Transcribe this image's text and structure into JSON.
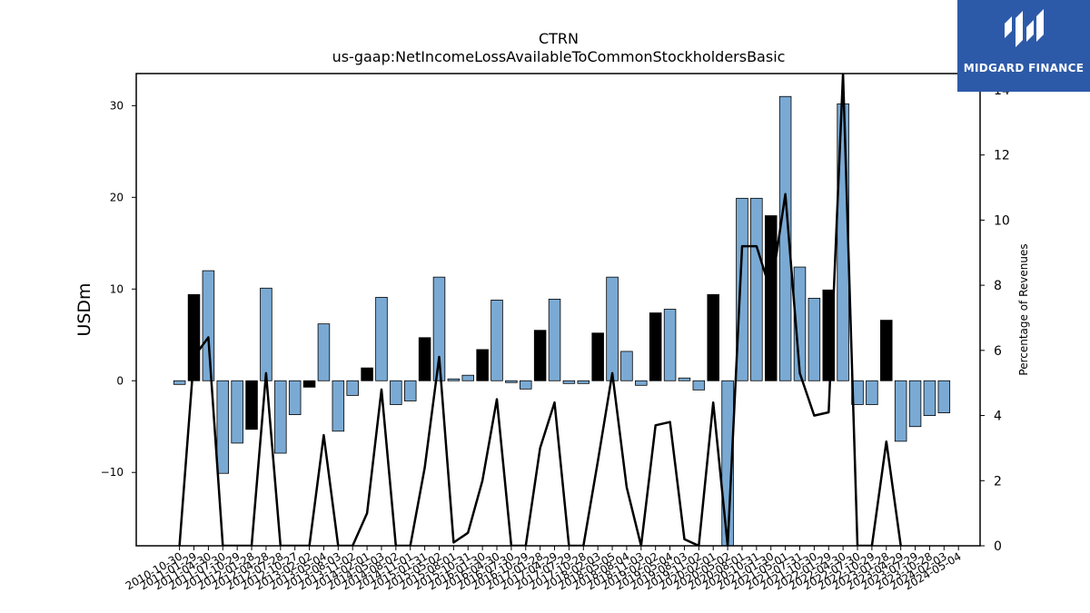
{
  "chart_data": {
    "type": "bar",
    "title": "CTRN",
    "subtitle": "us-gaap:NetIncomeLossAvailableToCommonStockholdersBasic",
    "ylabel": "USDm",
    "y2label": "Percentage of Revenues",
    "ylim": [
      -18,
      33.5
    ],
    "y2lim": [
      0,
      14.5
    ],
    "yticks": [
      -10,
      0,
      10,
      20,
      30
    ],
    "y2ticks": [
      0,
      2,
      4,
      6,
      8,
      10,
      12,
      14
    ],
    "xtick_labels": [
      "2010-10-30",
      "2011-01-29",
      "2011-04-30",
      "2011-07-30",
      "2011-10-29",
      "2012-01-28",
      "2012-04-28",
      "2012-07-28",
      "2012-10-27",
      "2013-02-02",
      "2013-05-04",
      "2013-08-03",
      "2013-11-02",
      "2014-02-01",
      "2014-05-03",
      "2014-08-02",
      "2014-11-01",
      "2015-01-31",
      "2015-05-02",
      "2015-08-01",
      "2015-10-31",
      "2016-01-30",
      "2016-04-30",
      "2016-07-30",
      "2016-10-29",
      "2017-01-28",
      "2017-04-29",
      "2017-07-29",
      "2017-10-28",
      "2018-02-03",
      "2018-05-05",
      "2018-08-04",
      "2018-11-03",
      "2019-02-02",
      "2019-05-04",
      "2019-08-03",
      "2019-11-02",
      "2020-02-01",
      "2020-05-02",
      "2020-08-01",
      "2020-10-31",
      "2021-01-30",
      "2021-05-01",
      "2021-07-31",
      "2021-10-30",
      "2022-01-29",
      "2022-04-30",
      "2022-07-30",
      "2022-10-29",
      "2023-01-28",
      "2023-04-29",
      "2023-07-29",
      "2023-10-28",
      "2024-02-03",
      "2024-05-04"
    ],
    "values": [
      -0.4,
      9.4,
      12.0,
      -10.1,
      -6.8,
      -5.3,
      10.1,
      -7.9,
      -3.7,
      -0.7,
      6.2,
      -5.5,
      -1.6,
      1.4,
      9.1,
      -2.6,
      -2.2,
      4.7,
      11.3,
      0.2,
      0.6,
      3.4,
      8.8,
      -0.2,
      -0.9,
      5.5,
      8.9,
      -0.3,
      -0.3,
      5.2,
      11.3,
      3.2,
      -0.5,
      7.4,
      7.8,
      0.3,
      -1.0,
      9.4,
      -18.0,
      19.9,
      19.9,
      18.0,
      31.0,
      12.4,
      9.0,
      9.9,
      30.2,
      -2.6,
      -2.6,
      6.6,
      -6.6,
      -5.0,
      -3.8,
      -3.5,
      null
    ],
    "highlight": [
      false,
      true,
      false,
      false,
      false,
      true,
      false,
      false,
      false,
      true,
      false,
      false,
      false,
      true,
      false,
      false,
      false,
      true,
      false,
      false,
      false,
      true,
      false,
      false,
      false,
      true,
      false,
      false,
      false,
      true,
      false,
      false,
      false,
      true,
      false,
      false,
      false,
      true,
      false,
      false,
      false,
      true,
      false,
      false,
      false,
      true,
      false,
      false,
      false,
      true,
      false,
      false,
      false,
      false,
      false
    ],
    "line_values": [
      0,
      5.8,
      6.4,
      0,
      0,
      0,
      5.3,
      0,
      0,
      0,
      3.4,
      0,
      0,
      1.0,
      4.8,
      0,
      0,
      2.4,
      5.8,
      0.1,
      0.4,
      2.0,
      4.5,
      0,
      0,
      3.0,
      4.4,
      0,
      0,
      2.6,
      5.3,
      1.8,
      0,
      3.7,
      3.8,
      0.2,
      0,
      4.4,
      0,
      9.2,
      9.2,
      7.8,
      10.8,
      5.3,
      4.0,
      4.1,
      14.5,
      0,
      0,
      3.2,
      0,
      null,
      null,
      null,
      null
    ],
    "colors": {
      "bar": "#7aaad4",
      "highlight_bar": "#000000",
      "line": "#000000",
      "edge": "#000000"
    }
  },
  "logo": {
    "text": "MIDGARD FINANCE"
  }
}
